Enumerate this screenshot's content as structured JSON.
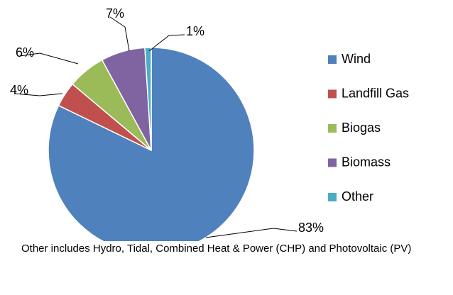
{
  "chart_data": {
    "type": "pie",
    "categories": [
      "Wind",
      "Landfill Gas",
      "Biogas",
      "Biomass",
      "Other"
    ],
    "values": [
      83,
      4,
      6,
      7,
      1
    ],
    "value_labels": [
      "83%",
      "4%",
      "6%",
      "7%",
      "1%"
    ],
    "colors": [
      "#4f81bd",
      "#c0504d",
      "#9bbb59",
      "#8064a2",
      "#4bacc6"
    ],
    "legend": "right",
    "note": "Other includes Hydro, Tidal, Combined Heat & Power (CHP) and Photovoltaic (PV)"
  }
}
